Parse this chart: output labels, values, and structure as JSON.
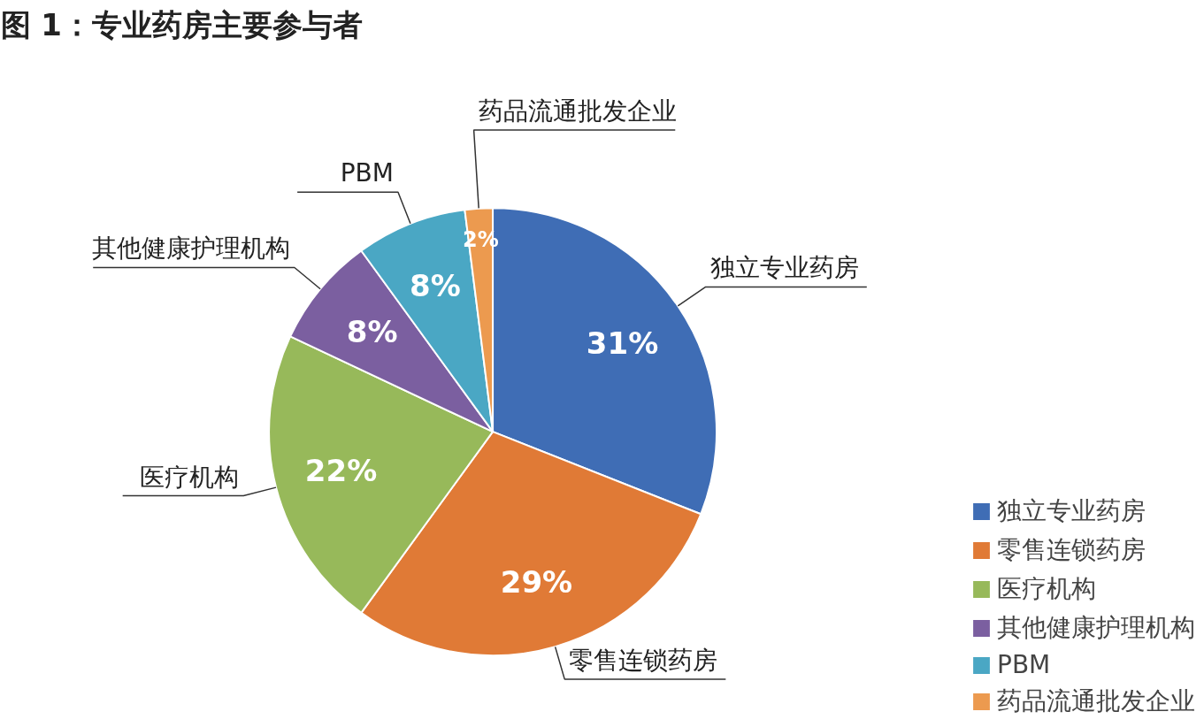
{
  "chart_data": {
    "type": "pie",
    "title": "图 1：专业药房主要参与者",
    "categories": [
      "独立专业药房",
      "零售连锁药房",
      "医疗机构",
      "其他健康护理机构",
      "PBM",
      "药品流通批发企业"
    ],
    "values": [
      31,
      29,
      22,
      8,
      8,
      2
    ],
    "colors": [
      "#3f6db5",
      "#e07a36",
      "#97b95a",
      "#7b5fa0",
      "#4aa7c4",
      "#ec9a4f"
    ],
    "value_labels": [
      "31%",
      "29%",
      "22%",
      "8%",
      "8%",
      "2%"
    ],
    "legend": "bottom right"
  }
}
